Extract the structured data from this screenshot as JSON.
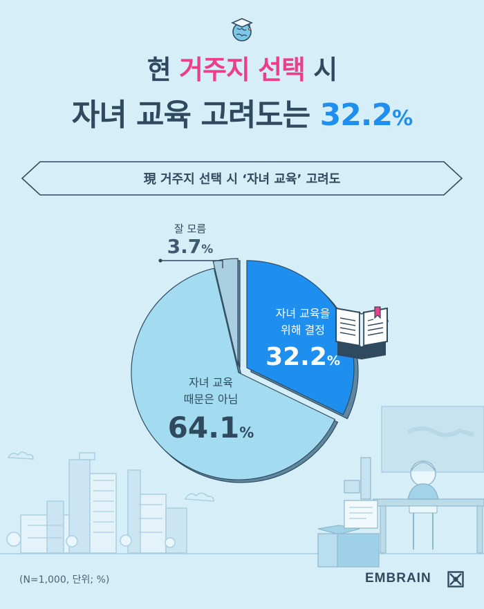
{
  "header": {
    "line1_prefix": "현 ",
    "line1_highlight": "거주지 선택",
    "line1_suffix": " 시",
    "line2_prefix": "자녀 교육 고려도는 ",
    "line2_highlight": "32.2",
    "line2_unit": "%"
  },
  "subtitle": "現 거주지 선택 시 ‘자녀 교육’ 고려도",
  "chart_data": {
    "type": "pie",
    "categories": [
      "자녀 교육을 위해 결정",
      "자녀 교육 때문은 아님",
      "잘 모름"
    ],
    "values": [
      32.2,
      64.1,
      3.7
    ],
    "unit": "%",
    "colors": [
      "#1e8fef",
      "#a3dbf0",
      "#aacfe0"
    ]
  },
  "labels": {
    "decided_line1": "자녀 교육을",
    "decided_line2": "위해 결정",
    "decided_value": "32.2",
    "not_line1": "자녀 교육",
    "not_line2": "때문은 아님",
    "not_value": "64.1",
    "unknown_name": "잘 모름",
    "unknown_value": "3.7",
    "pct": "%"
  },
  "footnote": "(N=1,000, 단위; %)",
  "brand": "EMBRAIN",
  "icons": {
    "top": "graduation-cap-globe-icon",
    "book": "open-book-icon",
    "logo": "embrain-logo-icon"
  }
}
